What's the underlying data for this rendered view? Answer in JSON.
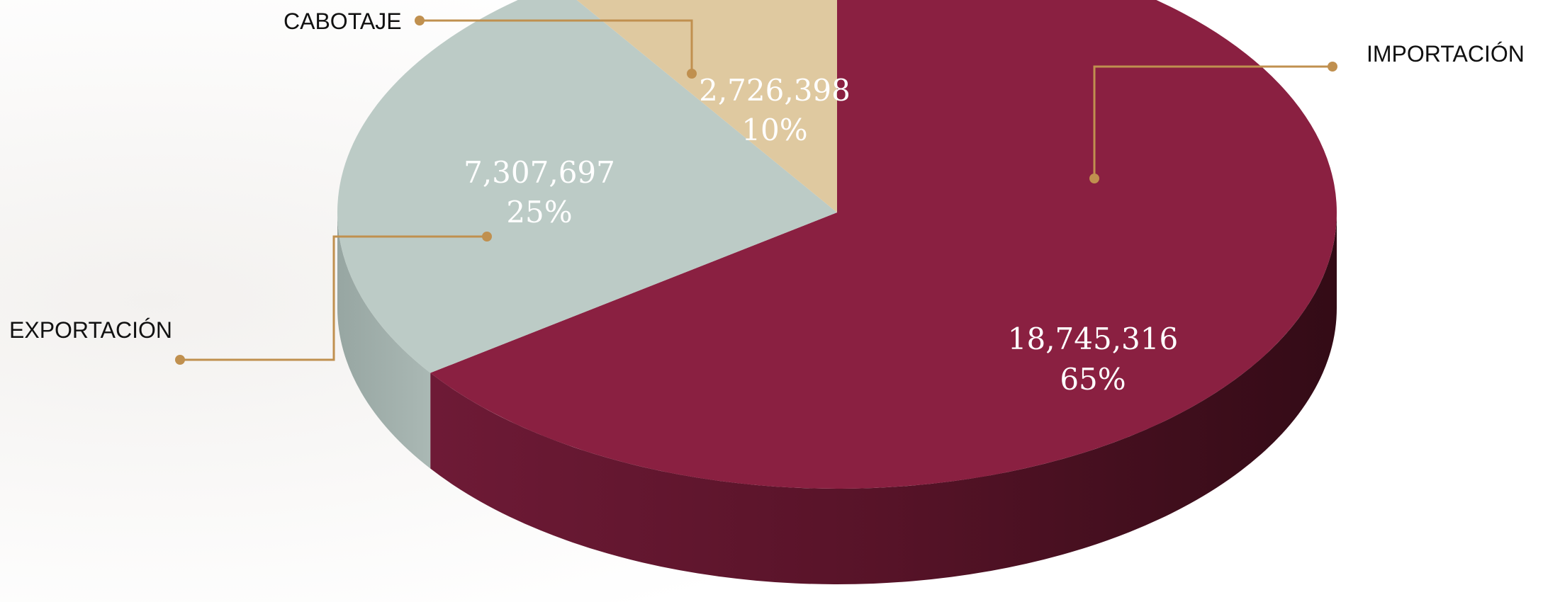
{
  "chart_data": {
    "type": "pie",
    "style": "3d",
    "slices": [
      {
        "label": "IMPORTACIÓN",
        "value": 18745316,
        "value_text": "18,745,316",
        "percent_text": "65%",
        "color": "#8a2041",
        "side_color": "#5e1530"
      },
      {
        "label": "EXPORTACIÓN",
        "value": 7307697,
        "value_text": "7,307,697",
        "percent_text": "25%",
        "color": "#bccbc6",
        "side_color": "#9aaaa6"
      },
      {
        "label": "CABOTAJE",
        "value": 2726398,
        "value_text": "2,726,398",
        "percent_text": "10%",
        "color": "#dfc9a0",
        "side_color": "#c4ae86"
      }
    ],
    "leader_line_color": "#c0904f"
  }
}
